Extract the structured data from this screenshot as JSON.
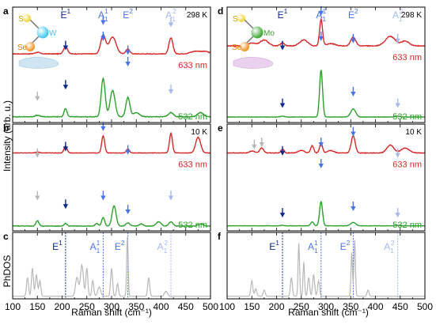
{
  "figure": {
    "y_label_top": "Intensity (arb. u.)",
    "y_label_bottom": "PhDOS",
    "x_label": "Raman shift (cm⁻¹)",
    "x_ticks": [
      "100",
      "150",
      "200",
      "250",
      "300",
      "350",
      "400",
      "450",
      "500"
    ]
  },
  "colors": {
    "red": "#d62728",
    "green": "#2ca02c",
    "grey": "#b8b8b8",
    "dark_blue": "#0b2a8a",
    "mid_blue": "#4a73e8",
    "light_blue": "#a6b8f0"
  },
  "molecules": [
    {
      "atoms": [
        {
          "label": "S",
          "color": "#f2d12a"
        },
        {
          "label": "W",
          "color": "#3fc6ea"
        },
        {
          "label": "Se",
          "color": "#f0901e"
        }
      ]
    },
    {
      "atoms": [
        {
          "label": "S",
          "color": "#f2d12a"
        },
        {
          "label": "Mo",
          "color": "#3aa52e"
        },
        {
          "label": "Se",
          "color": "#f0901e"
        }
      ]
    }
  ],
  "chart_data": [
    {
      "panel": "a",
      "type": "line",
      "temperature": "298 K",
      "xlim": [
        100,
        500
      ],
      "mode_labels": [
        {
          "base": "E",
          "sup": "1",
          "x": 207,
          "color": "#0b2a8a"
        },
        {
          "base": "A",
          "sup": "1",
          "sub": "1",
          "x": 283,
          "color": "#4a73e8"
        },
        {
          "base": "E",
          "sup": "2",
          "x": 333,
          "color": "#4a73e8"
        },
        {
          "base": "A",
          "sup": "2",
          "sub": "1",
          "x": 420,
          "color": "#a6b8f0"
        }
      ],
      "series": [
        {
          "name": "633 nm",
          "color": "#d62728",
          "baseline": 0.38,
          "noise": 0.012,
          "peaks": [
            [
              150,
              0.03,
              5
            ],
            [
              207,
              0.14,
              4
            ],
            [
              283,
              0.35,
              5
            ],
            [
              302,
              0.32,
              7
            ],
            [
              333,
              0.09,
              4
            ],
            [
              420,
              0.3,
              4
            ],
            [
              470,
              0.05,
              10
            ],
            [
              490,
              0.04,
              8
            ]
          ]
        },
        {
          "name": "532 nm",
          "color": "#2ca02c",
          "baseline": 0.05,
          "noise": 0.01,
          "peaks": [
            [
              150,
              0.02,
              5
            ],
            [
              207,
              0.12,
              3
            ],
            [
              283,
              0.55,
              4
            ],
            [
              302,
              0.38,
              5
            ],
            [
              333,
              0.28,
              4
            ],
            [
              350,
              0.06,
              6
            ],
            [
              420,
              0.06,
              5
            ],
            [
              480,
              0.06,
              6
            ]
          ]
        }
      ],
      "arrows": [
        {
          "x": 207,
          "y": 0.64,
          "color": "#0b2a8a"
        },
        {
          "x": 283,
          "y": 0.86,
          "color": "#4a73e8"
        },
        {
          "x": 333,
          "y": 0.6,
          "color": "#4a73e8"
        },
        {
          "x": 420,
          "y": 0.84,
          "color": "#a6b8f0"
        },
        {
          "x": 150,
          "y": 0.2,
          "color": "#b8b8b8"
        },
        {
          "x": 207,
          "y": 0.3,
          "color": "#0b2a8a"
        },
        {
          "x": 283,
          "y": 0.72,
          "color": "#4a73e8"
        },
        {
          "x": 333,
          "y": 0.5,
          "color": "#4a73e8"
        },
        {
          "x": 420,
          "y": 0.26,
          "color": "#a6b8f0"
        }
      ]
    },
    {
      "panel": "b",
      "type": "line",
      "temperature": "10 K",
      "xlim": [
        100,
        500
      ],
      "series": [
        {
          "name": "633 nm",
          "color": "#d62728",
          "baseline": 0.5,
          "noise": 0.008,
          "peaks": [
            [
              150,
              0.02,
              4
            ],
            [
              207,
              0.14,
              3
            ],
            [
              283,
              0.35,
              3
            ],
            [
              333,
              0.08,
              3
            ],
            [
              420,
              0.4,
              3
            ],
            [
              475,
              0.32,
              5
            ]
          ]
        },
        {
          "name": "532 nm",
          "color": "#2ca02c",
          "baseline": 0.05,
          "noise": 0.01,
          "peaks": [
            [
              150,
              0.1,
              3
            ],
            [
              207,
              0.05,
              3
            ],
            [
              270,
              0.05,
              3
            ],
            [
              283,
              0.16,
              3
            ],
            [
              305,
              0.38,
              4
            ],
            [
              333,
              0.06,
              4
            ],
            [
              360,
              0.04,
              4
            ],
            [
              395,
              0.08,
              5
            ],
            [
              420,
              0.08,
              4
            ],
            [
              480,
              0.04,
              5
            ]
          ]
        }
      ],
      "arrows": [
        {
          "x": 150,
          "y": 0.7,
          "color": "#b8b8b8"
        },
        {
          "x": 207,
          "y": 0.76,
          "color": "#0b2a8a"
        },
        {
          "x": 283,
          "y": 0.95,
          "color": "#4a73e8"
        },
        {
          "x": 333,
          "y": 0.73,
          "color": "#4a73e8"
        },
        {
          "x": 150,
          "y": 0.3,
          "color": "#b8b8b8"
        },
        {
          "x": 207,
          "y": 0.22,
          "color": "#0b2a8a"
        },
        {
          "x": 283,
          "y": 0.3,
          "color": "#4a73e8"
        },
        {
          "x": 333,
          "y": 0.17,
          "color": "#4a73e8"
        },
        {
          "x": 420,
          "y": 0.3,
          "color": "#a6b8f0"
        }
      ]
    },
    {
      "panel": "c",
      "type": "line",
      "xlim": [
        100,
        500
      ],
      "mode_lines": [
        {
          "base": "E",
          "sup": "1",
          "x": 207,
          "color": "#0b2a8a"
        },
        {
          "base": "A",
          "sup": "1",
          "sub": "1",
          "x": 283,
          "color": "#4a73e8"
        },
        {
          "base": "E",
          "sup": "2",
          "x": 333,
          "color": "#4a73e8"
        },
        {
          "base": "A",
          "sup": "2",
          "sub": "1",
          "x": 420,
          "color": "#a6b8f0"
        }
      ],
      "series": [
        {
          "name": "",
          "color": "#b8b8b8",
          "baseline": 0.02,
          "noise": 0,
          "peaks": [
            [
              130,
              0.3,
              2
            ],
            [
              140,
              0.45,
              2
            ],
            [
              148,
              0.35,
              2
            ],
            [
              155,
              0.25,
              2
            ],
            [
              230,
              0.3,
              3
            ],
            [
              240,
              0.5,
              3
            ],
            [
              250,
              0.45,
              2
            ],
            [
              262,
              0.25,
              2
            ],
            [
              275,
              0.15,
              3
            ],
            [
              300,
              0.45,
              2
            ],
            [
              312,
              0.2,
              2
            ],
            [
              332,
              0.95,
              1.5
            ],
            [
              375,
              0.3,
              2
            ],
            [
              410,
              0.08,
              3
            ]
          ]
        }
      ]
    },
    {
      "panel": "d",
      "type": "line",
      "temperature": "298 K",
      "xlim": [
        100,
        500
      ],
      "mode_labels": [
        {
          "base": "E",
          "sup": "1",
          "x": 212,
          "color": "#0b2a8a"
        },
        {
          "base": "A",
          "sup": "1",
          "sub": "1",
          "x": 290,
          "color": "#4a73e8"
        },
        {
          "base": "E",
          "sup": "2",
          "x": 355,
          "color": "#4a73e8"
        },
        {
          "base": "A",
          "sup": "2",
          "sub": "1",
          "x": 445,
          "color": "#a6b8f0"
        }
      ],
      "series": [
        {
          "name": "633 nm",
          "color": "#d62728",
          "baseline": 0.42,
          "noise": 0.012,
          "peaks": [
            [
              150,
              0.05,
              8
            ],
            [
              175,
              0.1,
              8
            ],
            [
              212,
              0.05,
              4
            ],
            [
              255,
              0.1,
              8
            ],
            [
              290,
              0.45,
              3
            ],
            [
              310,
              0.04,
              8
            ],
            [
              355,
              0.15,
              5
            ],
            [
              430,
              0.16,
              10
            ],
            [
              460,
              0.08,
              8
            ]
          ]
        },
        {
          "name": "532 nm",
          "color": "#2ca02c",
          "baseline": 0.04,
          "noise": 0.004,
          "peaks": [
            [
              212,
              0.01,
              4
            ],
            [
              290,
              0.58,
              3
            ],
            [
              355,
              0.1,
              5
            ],
            [
              445,
              0.01,
              4
            ]
          ]
        }
      ],
      "arrows": [
        {
          "x": 212,
          "y": 0.64,
          "color": "#0b2a8a"
        },
        {
          "x": 290,
          "y": 0.94,
          "color": "#4a73e8"
        },
        {
          "x": 355,
          "y": 0.7,
          "color": "#4a73e8"
        },
        {
          "x": 445,
          "y": 0.7,
          "color": "#a6b8f0"
        },
        {
          "x": 212,
          "y": 0.14,
          "color": "#0b2a8a"
        },
        {
          "x": 290,
          "y": 0.72,
          "color": "#4a73e8"
        },
        {
          "x": 355,
          "y": 0.24,
          "color": "#4a73e8"
        },
        {
          "x": 445,
          "y": 0.14,
          "color": "#a6b8f0"
        }
      ]
    },
    {
      "panel": "e",
      "type": "line",
      "temperature": "10 K",
      "xlim": [
        100,
        500
      ],
      "series": [
        {
          "name": "633 nm",
          "color": "#d62728",
          "baseline": 0.5,
          "noise": 0.012,
          "peaks": [
            [
              150,
              0.04,
              5
            ],
            [
              170,
              0.1,
              4
            ],
            [
              212,
              0.08,
              3
            ],
            [
              250,
              0.05,
              6
            ],
            [
              272,
              0.15,
              3
            ],
            [
              290,
              0.2,
              3
            ],
            [
              310,
              0.05,
              6
            ],
            [
              355,
              0.35,
              4
            ],
            [
              430,
              0.16,
              7
            ],
            [
              460,
              0.1,
              8
            ]
          ]
        },
        {
          "name": "532 nm",
          "color": "#2ca02c",
          "baseline": 0.05,
          "noise": 0.005,
          "peaks": [
            [
              212,
              0.01,
              3
            ],
            [
              272,
              0.07,
              3
            ],
            [
              290,
              0.42,
              3
            ],
            [
              355,
              0.06,
              5
            ],
            [
              445,
              0.01,
              4
            ]
          ]
        }
      ],
      "arrows": [
        {
          "x": 155,
          "y": 0.78,
          "color": "#b8b8b8"
        },
        {
          "x": 170,
          "y": 0.8,
          "color": "#b8b8b8"
        },
        {
          "x": 212,
          "y": 0.72,
          "color": "#0b2a8a"
        },
        {
          "x": 290,
          "y": 0.8,
          "color": "#4a73e8"
        },
        {
          "x": 355,
          "y": 0.9,
          "color": "#4a73e8"
        },
        {
          "x": 445,
          "y": 0.7,
          "color": "#a6b8f0"
        },
        {
          "x": 212,
          "y": 0.14,
          "color": "#0b2a8a"
        },
        {
          "x": 290,
          "y": 0.6,
          "color": "#4a73e8"
        },
        {
          "x": 355,
          "y": 0.2,
          "color": "#4a73e8"
        },
        {
          "x": 445,
          "y": 0.14,
          "color": "#a6b8f0"
        }
      ]
    },
    {
      "panel": "f",
      "type": "line",
      "xlim": [
        100,
        500
      ],
      "mode_lines": [
        {
          "base": "E",
          "sup": "1",
          "x": 212,
          "color": "#0b2a8a"
        },
        {
          "base": "A",
          "sup": "1",
          "sub": "1",
          "x": 290,
          "color": "#4a73e8"
        },
        {
          "base": "E",
          "sup": "2",
          "x": 355,
          "color": "#4a73e8"
        },
        {
          "base": "A",
          "sup": "2",
          "sub": "1",
          "x": 445,
          "color": "#a6b8f0"
        }
      ],
      "series": [
        {
          "name": "",
          "color": "#b8b8b8",
          "baseline": 0.02,
          "noise": 0,
          "peaks": [
            [
              150,
              0.25,
              2
            ],
            [
              158,
              0.12,
              2
            ],
            [
              175,
              0.1,
              2
            ],
            [
              230,
              0.3,
              2
            ],
            [
              245,
              0.85,
              1.5
            ],
            [
              255,
              0.55,
              1.5
            ],
            [
              265,
              0.3,
              2
            ],
            [
              275,
              0.35,
              2
            ],
            [
              285,
              0.25,
              2
            ],
            [
              352,
              0.7,
              1.5
            ],
            [
              358,
              0.9,
              1.5
            ],
            [
              385,
              0.1,
              2
            ]
          ]
        }
      ]
    }
  ]
}
